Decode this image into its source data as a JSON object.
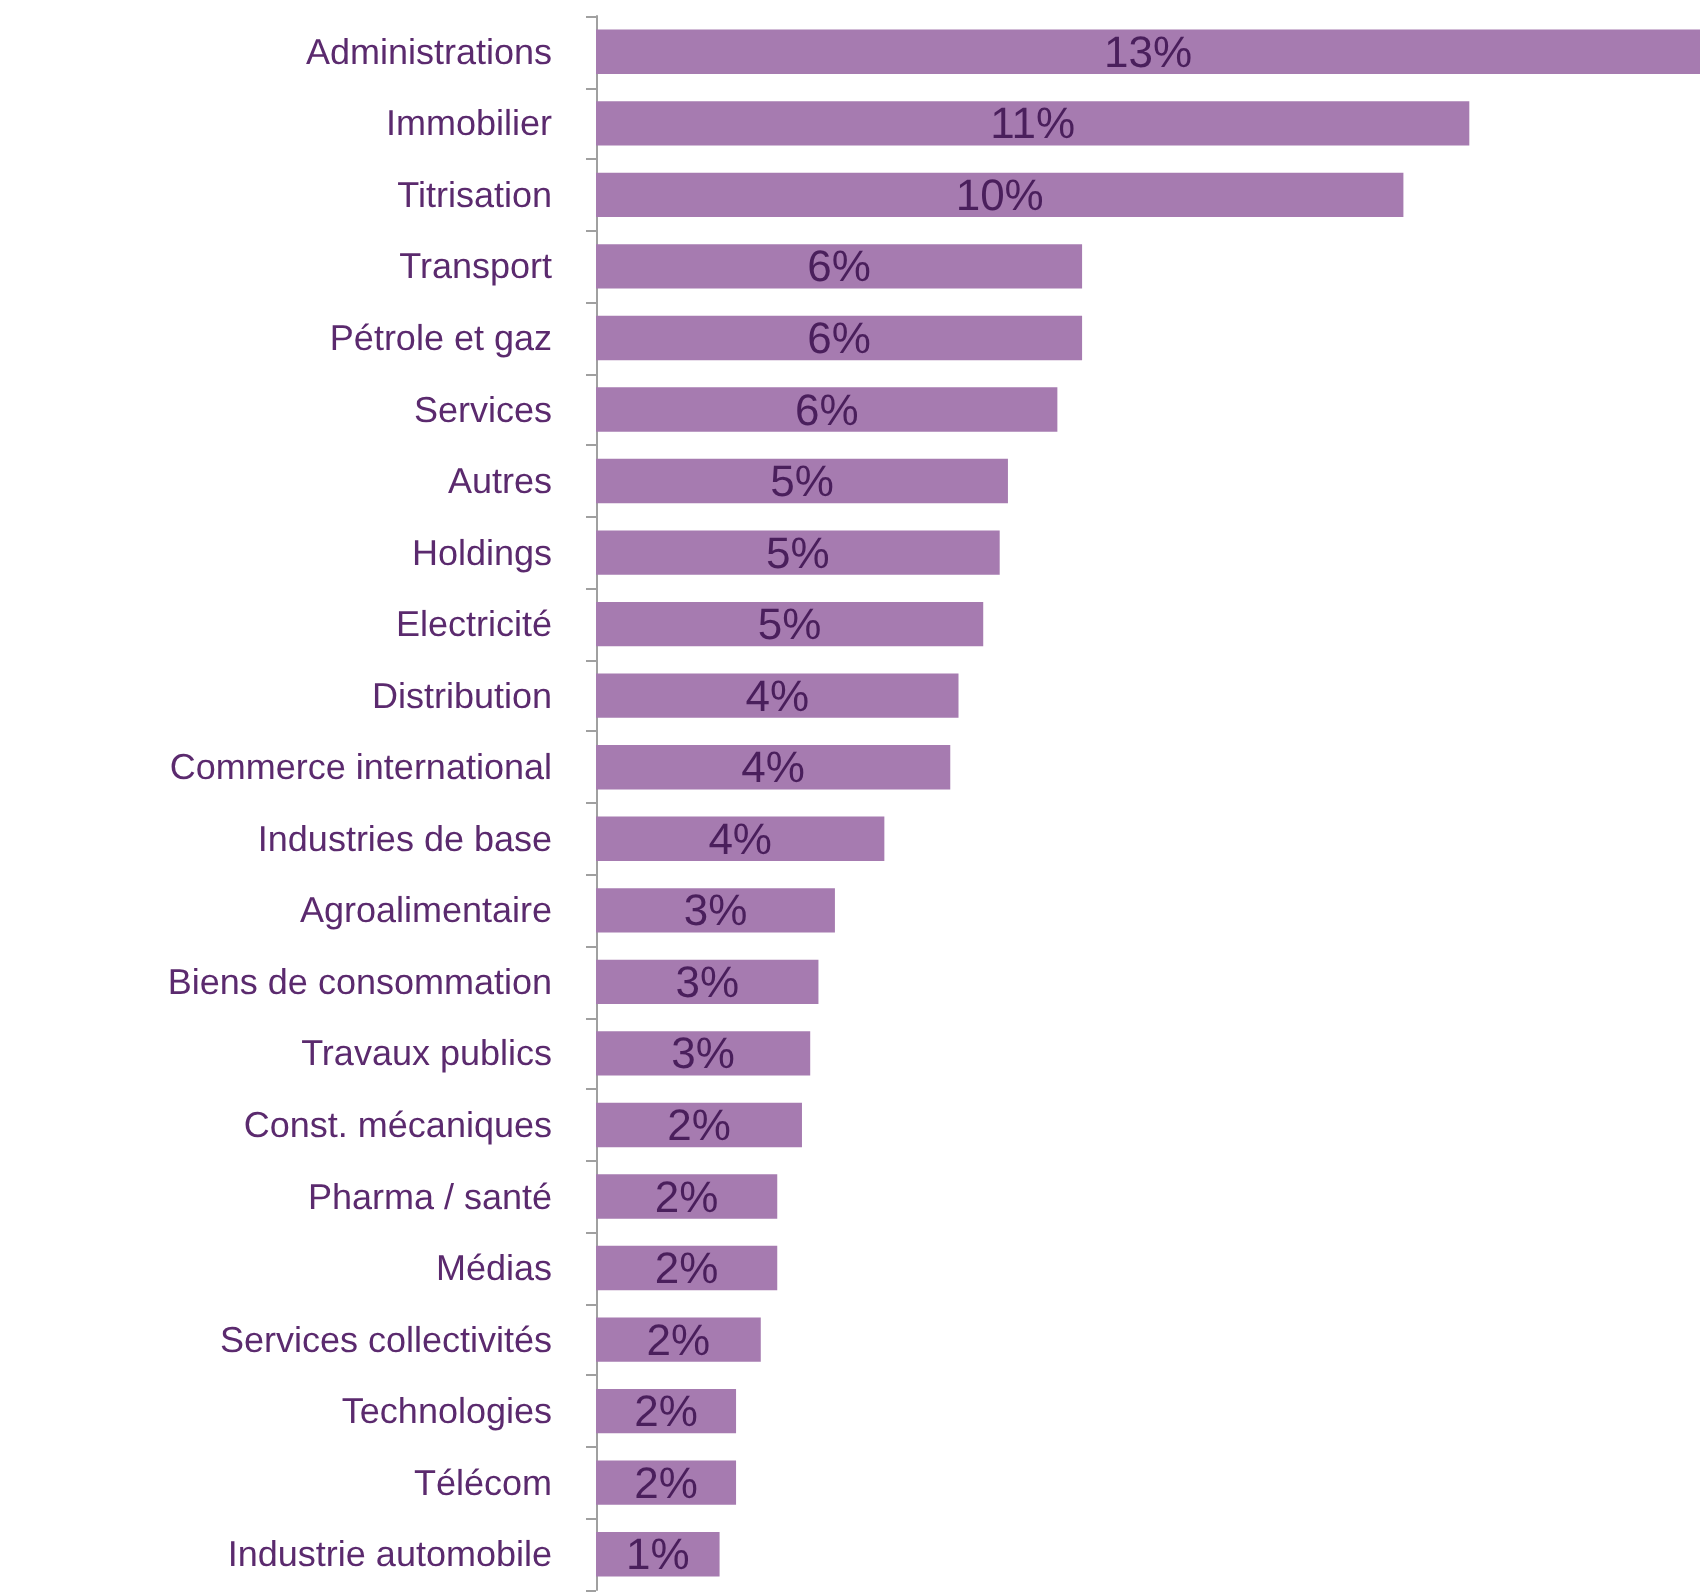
{
  "chart_data": {
    "type": "bar",
    "orientation": "horizontal",
    "color": "#a67bb0",
    "categories": [
      "Administrations",
      "Immobilier",
      "Titrisation",
      "Transport",
      "Pétrole et gaz",
      "Services",
      "Autres",
      "Holdings",
      "Electricité",
      "Distribution",
      "Commerce international",
      "Industries de base",
      "Agroalimentaire",
      "Biens de consommation",
      "Travaux publics",
      "Const. mécaniques",
      "Pharma / santé",
      "Médias",
      "Services collectivités",
      "Technologies",
      "Télécom",
      "Industrie automobile"
    ],
    "values": [
      13.4,
      10.6,
      9.8,
      5.9,
      5.9,
      5.6,
      5.0,
      4.9,
      4.7,
      4.4,
      4.3,
      3.5,
      2.9,
      2.7,
      2.6,
      2.5,
      2.2,
      2.2,
      2.0,
      1.7,
      1.7,
      1.5
    ],
    "value_labels": [
      "13%",
      "11%",
      "10%",
      "6%",
      "6%",
      "6%",
      "5%",
      "5%",
      "5%",
      "4%",
      "4%",
      "4%",
      "3%",
      "3%",
      "3%",
      "2%",
      "2%",
      "2%",
      "2%",
      "2%",
      "2%",
      "1%"
    ]
  }
}
